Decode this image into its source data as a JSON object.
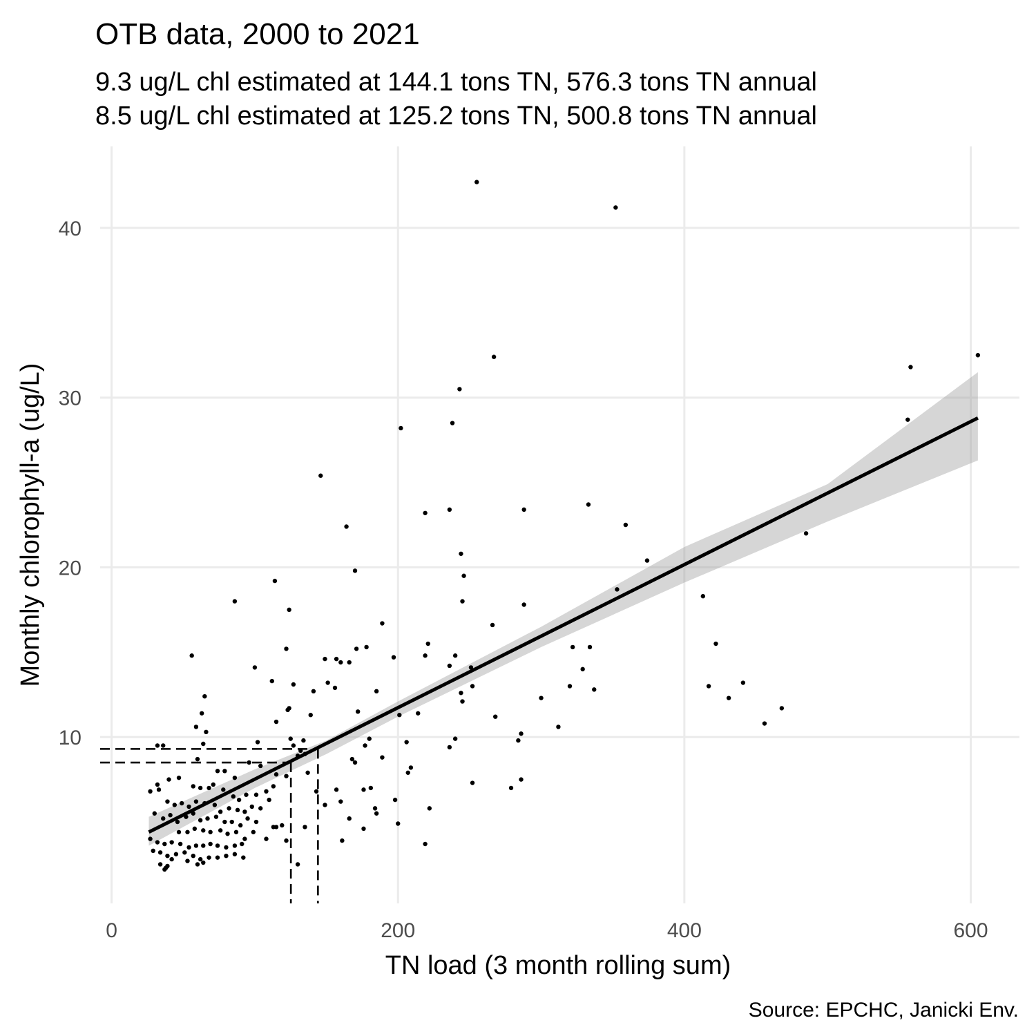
{
  "chart_data": {
    "type": "scatter",
    "title": "OTB data, 2000 to 2021",
    "subtitle_lines": [
      "9.3 ug/L chl estimated at 144.1 tons TN, 576.3 tons TN annual",
      "8.5 ug/L chl estimated at 125.2 tons TN, 500.8 tons TN annual"
    ],
    "xlabel": "TN load (3 month rolling sum)",
    "ylabel": "Monthly chlorophyll-a (ug/L)",
    "caption": "Source: EPCHC, Janicki Env.",
    "xlim": [
      -8,
      634
    ],
    "ylim": [
      0.2,
      44.8
    ],
    "x_ticks": [
      0,
      200,
      400,
      600
    ],
    "y_ticks": [
      10,
      20,
      30,
      40
    ],
    "grid": true,
    "legend": "none",
    "regression_line": {
      "x": [
        26,
        605
      ],
      "y": [
        4.4,
        28.8
      ]
    },
    "confidence_band": {
      "x": [
        26,
        100,
        150,
        200,
        300,
        400,
        500,
        605
      ],
      "lower": [
        3.6,
        7.0,
        9.0,
        11.2,
        15.3,
        19.1,
        22.7,
        26.3
      ],
      "upper": [
        5.3,
        8.1,
        9.8,
        12.1,
        16.5,
        21.2,
        24.9,
        31.5
      ]
    },
    "reference_lines": [
      {
        "x": 144.1,
        "y": 9.3
      },
      {
        "x": 125.2,
        "y": 8.5
      }
    ],
    "points": [
      [
        255,
        42.7
      ],
      [
        352,
        41.2
      ],
      [
        267,
        32.4
      ],
      [
        605,
        32.5
      ],
      [
        558,
        31.8
      ],
      [
        556,
        28.7
      ],
      [
        243,
        30.5
      ],
      [
        202,
        28.2
      ],
      [
        238,
        28.5
      ],
      [
        146,
        25.4
      ],
      [
        219,
        23.2
      ],
      [
        236,
        23.4
      ],
      [
        288,
        23.4
      ],
      [
        333,
        23.7
      ],
      [
        359,
        22.5
      ],
      [
        485,
        22.0
      ],
      [
        164,
        22.4
      ],
      [
        244,
        20.8
      ],
      [
        246,
        19.5
      ],
      [
        170,
        19.8
      ],
      [
        114,
        19.2
      ],
      [
        374,
        20.4
      ],
      [
        353,
        18.7
      ],
      [
        413,
        18.3
      ],
      [
        245,
        18.0
      ],
      [
        288,
        17.8
      ],
      [
        86,
        18.0
      ],
      [
        124,
        17.5
      ],
      [
        189,
        16.7
      ],
      [
        266,
        16.6
      ],
      [
        122,
        15.2
      ],
      [
        178,
        15.3
      ],
      [
        171,
        15.2
      ],
      [
        221,
        15.5
      ],
      [
        422,
        15.5
      ],
      [
        334,
        15.3
      ],
      [
        322,
        15.3
      ],
      [
        240,
        14.8
      ],
      [
        197,
        14.7
      ],
      [
        219,
        14.8
      ],
      [
        149,
        14.6
      ],
      [
        157,
        14.6
      ],
      [
        160,
        14.4
      ],
      [
        166,
        14.4
      ],
      [
        236,
        14.2
      ],
      [
        100,
        14.1
      ],
      [
        251,
        14.1
      ],
      [
        329,
        14.0
      ],
      [
        56,
        14.8
      ],
      [
        112,
        13.3
      ],
      [
        151,
        13.2
      ],
      [
        127,
        13.1
      ],
      [
        156,
        12.9
      ],
      [
        417,
        13.0
      ],
      [
        441,
        13.2
      ],
      [
        252,
        13.0
      ],
      [
        320,
        13.0
      ],
      [
        337,
        12.8
      ],
      [
        185,
        12.7
      ],
      [
        244,
        12.6
      ],
      [
        141,
        12.7
      ],
      [
        65,
        12.4
      ],
      [
        431,
        12.3
      ],
      [
        300,
        12.3
      ],
      [
        245,
        12.1
      ],
      [
        123,
        11.6
      ],
      [
        124,
        11.7
      ],
      [
        172,
        11.5
      ],
      [
        468,
        11.7
      ],
      [
        63,
        11.4
      ],
      [
        139,
        11.3
      ],
      [
        201,
        11.3
      ],
      [
        268,
        11.2
      ],
      [
        214,
        11.4
      ],
      [
        115,
        10.9
      ],
      [
        312,
        10.6
      ],
      [
        456,
        10.8
      ],
      [
        59,
        10.6
      ],
      [
        66,
        10.3
      ],
      [
        286,
        10.2
      ],
      [
        206,
        9.7
      ],
      [
        240,
        9.9
      ],
      [
        125,
        9.9
      ],
      [
        134,
        9.8
      ],
      [
        177,
        9.5
      ],
      [
        180,
        9.9
      ],
      [
        102,
        9.7
      ],
      [
        32,
        9.5
      ],
      [
        36,
        9.5
      ],
      [
        64,
        9.6
      ],
      [
        127,
        9.5
      ],
      [
        132,
        9.2
      ],
      [
        284,
        9.8
      ],
      [
        236,
        9.4
      ],
      [
        135,
        9.0
      ],
      [
        168,
        8.7
      ],
      [
        170,
        8.5
      ],
      [
        189,
        8.8
      ],
      [
        96,
        8.5
      ],
      [
        60,
        8.7
      ],
      [
        130,
        8.9
      ],
      [
        209,
        8.2
      ],
      [
        104,
        8.3
      ],
      [
        74,
        8.0
      ],
      [
        79,
        8.0
      ],
      [
        137,
        7.9
      ],
      [
        115,
        7.8
      ],
      [
        86,
        7.6
      ],
      [
        286,
        7.5
      ],
      [
        207,
        7.9
      ],
      [
        181,
        7.0
      ],
      [
        40,
        7.5
      ],
      [
        32,
        7.2
      ],
      [
        47,
        7.6
      ],
      [
        252,
        7.3
      ],
      [
        33,
        6.9
      ],
      [
        57,
        7.1
      ],
      [
        62,
        7.0
      ],
      [
        68,
        7.0
      ],
      [
        71,
        7.2
      ],
      [
        78,
        6.9
      ],
      [
        85,
        6.5
      ],
      [
        89,
        6.3
      ],
      [
        94,
        6.6
      ],
      [
        101,
        6.6
      ],
      [
        108,
        6.8
      ],
      [
        113,
        7.1
      ],
      [
        122,
        7.7
      ],
      [
        143,
        6.8
      ],
      [
        157,
        6.9
      ],
      [
        176,
        6.9
      ],
      [
        279,
        7.0
      ],
      [
        27,
        6.8
      ],
      [
        39,
        6.2
      ],
      [
        44,
        6.0
      ],
      [
        49,
        6.1
      ],
      [
        54,
        5.9
      ],
      [
        59,
        6.2
      ],
      [
        65,
        6.1
      ],
      [
        72,
        6.0
      ],
      [
        76,
        5.6
      ],
      [
        82,
        5.8
      ],
      [
        88,
        5.7
      ],
      [
        93,
        5.6
      ],
      [
        98,
        5.9
      ],
      [
        104,
        5.8
      ],
      [
        110,
        6.3
      ],
      [
        149,
        6.0
      ],
      [
        160,
        6.2
      ],
      [
        198,
        6.3
      ],
      [
        222,
        5.8
      ],
      [
        184,
        5.8
      ],
      [
        30,
        5.5
      ],
      [
        36,
        5.2
      ],
      [
        41,
        5.4
      ],
      [
        46,
        5.0
      ],
      [
        52,
        5.3
      ],
      [
        57,
        5.5
      ],
      [
        62,
        5.1
      ],
      [
        67,
        5.2
      ],
      [
        73,
        5.3
      ],
      [
        79,
        5.0
      ],
      [
        84,
        5.0
      ],
      [
        90,
        4.8
      ],
      [
        95,
        5.2
      ],
      [
        101,
        5.0
      ],
      [
        113,
        4.7
      ],
      [
        119,
        4.8
      ],
      [
        166,
        5.2
      ],
      [
        185,
        5.5
      ],
      [
        200,
        4.9
      ],
      [
        47,
        4.4
      ],
      [
        53,
        4.4
      ],
      [
        58,
        4.6
      ],
      [
        64,
        4.5
      ],
      [
        69,
        4.4
      ],
      [
        76,
        4.5
      ],
      [
        81,
        4.3
      ],
      [
        87,
        4.4
      ],
      [
        93,
        4.0
      ],
      [
        99,
        4.4
      ],
      [
        108,
        4.0
      ],
      [
        115,
        4.7
      ],
      [
        135,
        4.7
      ],
      [
        176,
        4.6
      ],
      [
        27,
        4.0
      ],
      [
        32,
        3.8
      ],
      [
        37,
        3.7
      ],
      [
        42,
        3.8
      ],
      [
        48,
        3.7
      ],
      [
        54,
        3.5
      ],
      [
        59,
        3.6
      ],
      [
        64,
        3.6
      ],
      [
        69,
        3.7
      ],
      [
        74,
        3.6
      ],
      [
        80,
        3.5
      ],
      [
        86,
        3.6
      ],
      [
        91,
        3.7
      ],
      [
        122,
        3.9
      ],
      [
        161,
        3.9
      ],
      [
        219,
        3.7
      ],
      [
        29,
        3.3
      ],
      [
        34,
        3.2
      ],
      [
        39,
        3.0
      ],
      [
        45,
        3.1
      ],
      [
        51,
        3.2
      ],
      [
        57,
        3.0
      ],
      [
        62,
        2.8
      ],
      [
        68,
        2.9
      ],
      [
        74,
        2.9
      ],
      [
        80,
        3.0
      ],
      [
        86,
        3.1
      ],
      [
        92,
        2.9
      ],
      [
        34,
        2.5
      ],
      [
        38,
        2.3
      ],
      [
        42,
        2.8
      ],
      [
        53,
        2.7
      ],
      [
        60,
        2.5
      ],
      [
        64,
        2.6
      ],
      [
        130,
        2.5
      ],
      [
        37,
        2.2
      ],
      [
        39,
        2.4
      ]
    ]
  }
}
